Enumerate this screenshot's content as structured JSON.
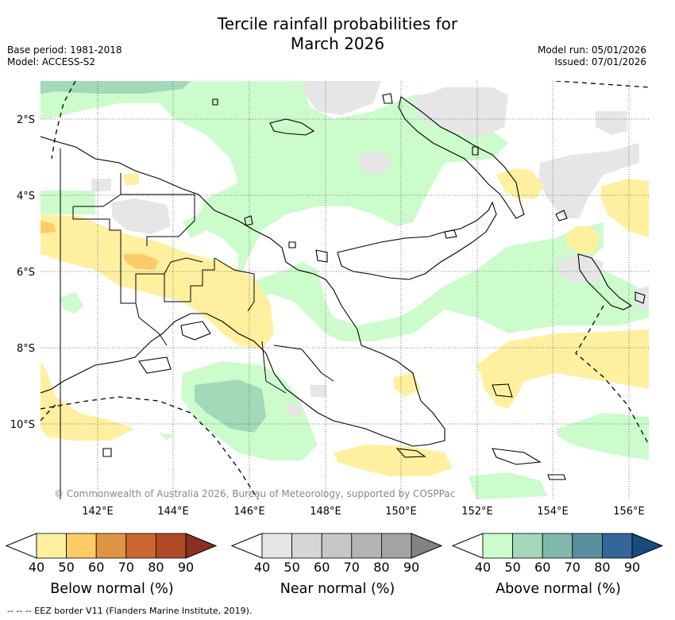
{
  "title_line1": "Tercile rainfall probabilities for",
  "title_line2": "March 2026",
  "meta_left": [
    "Base period: 1981-2018",
    "Model: ACCESS-S2"
  ],
  "meta_right": [
    "Model run: 05/01/2026",
    "Issued: 07/01/2026"
  ],
  "lat_labels": [
    "2°S",
    "4°S",
    "6°S",
    "8°S",
    "10°S"
  ],
  "lon_labels": [
    "142°E",
    "144°E",
    "146°E",
    "148°E",
    "150°E",
    "152°E",
    "154°E",
    "156°E"
  ],
  "copyright": "© Commonwealth of Australia 2026, Bureau of Meteorology, supported by COSPPac",
  "colorbars": [
    {
      "label": "Below normal (%)",
      "ticks": [
        "40",
        "50",
        "60",
        "70",
        "80",
        "90"
      ],
      "colors": [
        "#fff0a0",
        "#ffcb66",
        "#e09545",
        "#cc6630",
        "#b04a26",
        "#8a3020"
      ]
    },
    {
      "label": "Near normal (%)",
      "ticks": [
        "40",
        "50",
        "60",
        "70",
        "80",
        "90"
      ],
      "colors": [
        "#e6e6e6",
        "#d6d6d6",
        "#c6c6c6",
        "#b4b4b4",
        "#a3a3a3",
        "#838383"
      ]
    },
    {
      "label": "Above normal (%)",
      "ticks": [
        "40",
        "50",
        "60",
        "70",
        "80",
        "90"
      ],
      "colors": [
        "#ccfccc",
        "#a3d8b8",
        "#80b8ab",
        "#5a8fa0",
        "#336699",
        "#174c80"
      ]
    }
  ],
  "footer": "--  --  -- EEZ border V11 (Flanders Marine Institute, 2019)."
}
